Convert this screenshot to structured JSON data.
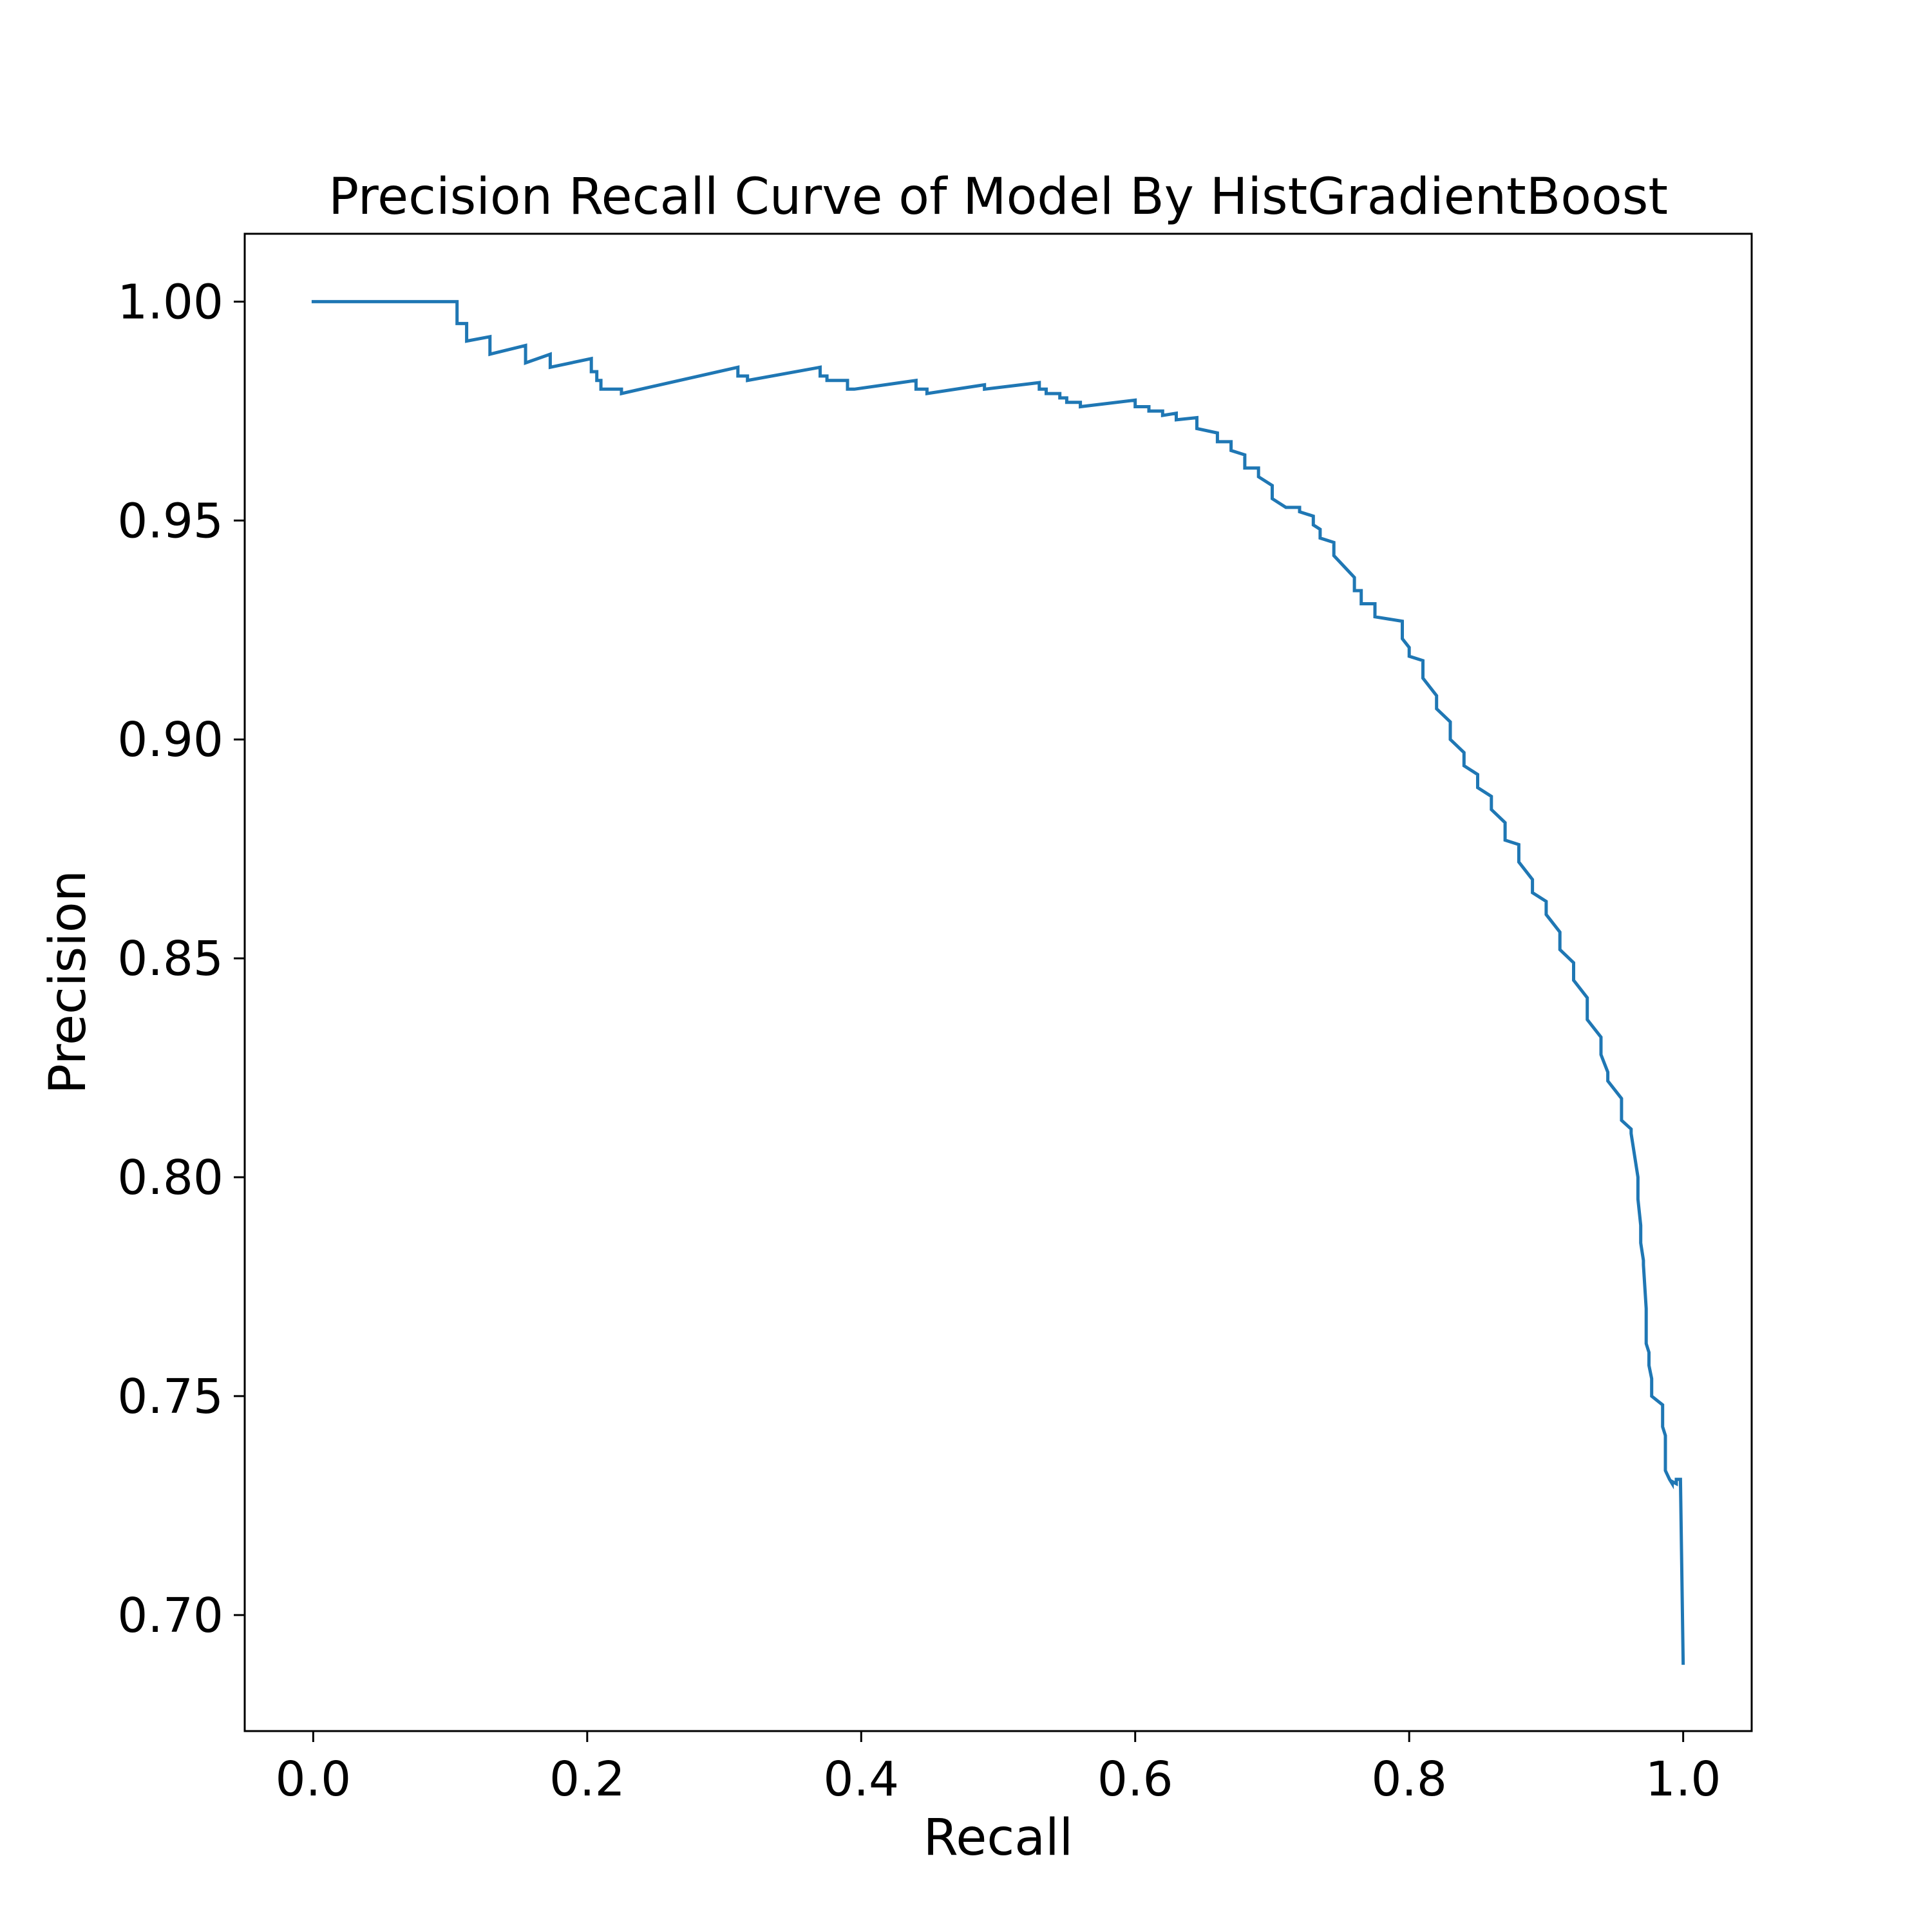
{
  "chart_data": {
    "type": "line",
    "title": "Precision Recall Curve of Model By HistGradientBoost",
    "xlabel": "Recall",
    "ylabel": "Precision",
    "xlim": [
      -0.05,
      1.05
    ],
    "ylim": [
      0.6735,
      1.0155
    ],
    "xticks": [
      0.0,
      0.2,
      0.4,
      0.6,
      0.8,
      1.0
    ],
    "xtick_labels": [
      "0.0",
      "0.2",
      "0.4",
      "0.6",
      "0.8",
      "1.0"
    ],
    "yticks": [
      0.7,
      0.75,
      0.8,
      0.85,
      0.9,
      0.95,
      1.0
    ],
    "ytick_labels": [
      "0.70",
      "0.75",
      "0.80",
      "0.85",
      "0.90",
      "0.95",
      "1.00"
    ],
    "grid": false,
    "line_color": "#1f77b4",
    "series": [
      {
        "step": "post",
        "x": [
          0.0,
          0.105,
          0.105,
          0.112,
          0.112,
          0.129,
          0.129,
          0.155,
          0.155,
          0.173,
          0.173,
          0.203,
          0.203,
          0.207,
          0.207,
          0.21,
          0.21,
          0.225,
          0.225,
          0.31,
          0.31,
          0.317,
          0.317,
          0.37,
          0.37,
          0.375,
          0.375,
          0.39,
          0.39,
          0.395,
          0.395,
          0.44,
          0.44,
          0.448,
          0.448,
          0.49,
          0.49,
          0.53,
          0.53,
          0.535,
          0.535,
          0.545,
          0.545,
          0.55,
          0.55,
          0.56,
          0.56,
          0.6,
          0.6,
          0.61,
          0.61,
          0.62,
          0.62,
          0.63,
          0.63,
          0.645,
          0.645,
          0.66,
          0.66,
          0.67,
          0.67,
          0.68,
          0.68,
          0.69,
          0.69,
          0.7,
          0.7,
          0.71,
          0.71,
          0.72,
          0.72,
          0.73,
          0.73,
          0.735,
          0.735,
          0.745,
          0.745,
          0.76,
          0.76,
          0.765,
          0.765,
          0.775,
          0.775,
          0.795,
          0.795,
          0.8,
          0.8,
          0.81,
          0.81,
          0.82,
          0.82,
          0.83,
          0.83,
          0.84,
          0.84,
          0.85,
          0.85,
          0.86,
          0.86,
          0.87,
          0.87,
          0.88,
          0.88,
          0.89,
          0.89,
          0.9,
          0.9,
          0.91,
          0.91,
          0.92,
          0.92,
          0.93,
          0.93,
          0.94,
          0.94,
          0.945,
          0.945,
          0.955,
          0.955,
          0.962,
          0.962,
          0.967,
          0.967,
          0.969,
          0.969,
          0.971,
          0.971,
          0.973,
          0.973,
          0.975,
          0.975,
          0.977,
          0.977,
          0.985,
          0.985,
          0.987,
          0.987,
          0.99,
          0.99,
          0.992,
          0.992,
          0.995,
          0.995,
          0.998,
          0.998,
          1.0
        ],
        "y": [
          1.0,
          1.0,
          0.995,
          0.995,
          0.991,
          0.992,
          0.988,
          0.99,
          0.986,
          0.988,
          0.985,
          0.987,
          0.984,
          0.984,
          0.982,
          0.982,
          0.98,
          0.98,
          0.979,
          0.985,
          0.983,
          0.983,
          0.982,
          0.985,
          0.983,
          0.983,
          0.982,
          0.982,
          0.98,
          0.98,
          0.98,
          0.982,
          0.98,
          0.98,
          0.979,
          0.981,
          0.98,
          0.9815,
          0.98,
          0.98,
          0.979,
          0.979,
          0.978,
          0.978,
          0.977,
          0.977,
          0.976,
          0.9775,
          0.976,
          0.976,
          0.975,
          0.975,
          0.974,
          0.9745,
          0.973,
          0.9735,
          0.971,
          0.97,
          0.968,
          0.968,
          0.966,
          0.965,
          0.962,
          0.962,
          0.96,
          0.958,
          0.955,
          0.953,
          0.953,
          0.953,
          0.952,
          0.951,
          0.949,
          0.948,
          0.946,
          0.945,
          0.942,
          0.937,
          0.934,
          0.934,
          0.931,
          0.931,
          0.928,
          0.927,
          0.923,
          0.921,
          0.919,
          0.918,
          0.914,
          0.91,
          0.907,
          0.904,
          0.9,
          0.897,
          0.894,
          0.892,
          0.889,
          0.887,
          0.884,
          0.881,
          0.877,
          0.876,
          0.872,
          0.868,
          0.865,
          0.863,
          0.86,
          0.856,
          0.852,
          0.849,
          0.845,
          0.841,
          0.836,
          0.832,
          0.828,
          0.824,
          0.822,
          0.818,
          0.813,
          0.811,
          0.81,
          0.8,
          0.795,
          0.789,
          0.785,
          0.781,
          0.78,
          0.77,
          0.762,
          0.76,
          0.757,
          0.754,
          0.75,
          0.748,
          0.743,
          0.741,
          0.733,
          0.731,
          0.731,
          0.73,
          0.7305,
          0.73,
          0.731,
          0.731,
          0.731,
          0.689
        ]
      }
    ]
  }
}
